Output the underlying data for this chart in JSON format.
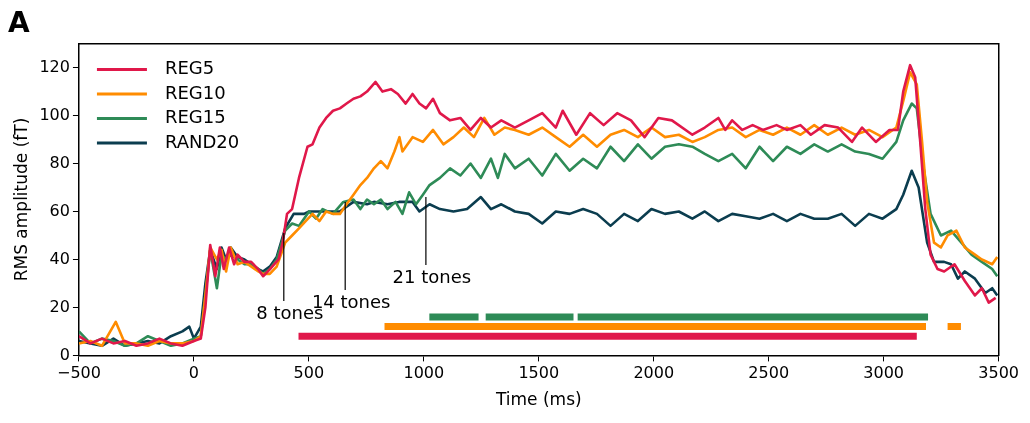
{
  "chart_data": {
    "type": "line",
    "title": "A",
    "xlabel": "Time (ms)",
    "ylabel": "RMS amplitude (fT)",
    "xlim": [
      -500,
      3500
    ],
    "xticks": [
      -500,
      0,
      500,
      1000,
      1500,
      2000,
      2500,
      3000,
      3500
    ],
    "ylim": [
      0,
      130
    ],
    "yticks": [
      0,
      20,
      40,
      60,
      80,
      100,
      120
    ],
    "grid": false,
    "legend": "top left",
    "marker": "none",
    "line_style": "solid",
    "annotations": [
      {
        "text": "8 tones",
        "x": 391,
        "y": 51
      },
      {
        "text": "14 tones",
        "x": 658,
        "y": 64
      },
      {
        "text": "21 tones",
        "x": 1009,
        "y": 66
      }
    ],
    "series": [
      {
        "name": "REG5",
        "color": "#e0184a",
        "x": [
          -500,
          -450,
          -400,
          -350,
          -300,
          -250,
          -200,
          -150,
          -100,
          -50,
          0,
          30,
          50,
          71,
          93,
          113,
          130,
          153,
          175,
          190,
          219,
          249,
          279,
          301,
          331,
          368,
          386,
          405,
          427,
          457,
          494,
          516,
          546,
          575,
          605,
          635,
          664,
          694,
          724,
          753,
          790,
          820,
          857,
          887,
          921,
          951,
          981,
          1010,
          1040,
          1070,
          1114,
          1159,
          1203,
          1248,
          1292,
          1337,
          1396,
          1456,
          1515,
          1574,
          1604,
          1663,
          1723,
          1782,
          1841,
          1901,
          1960,
          2020,
          2079,
          2168,
          2222,
          2281,
          2311,
          2341,
          2385,
          2430,
          2475,
          2534,
          2579,
          2638,
          2683,
          2743,
          2802,
          2862,
          2906,
          2966,
          3025,
          3062,
          3085,
          3115,
          3137,
          3159,
          3181,
          3204,
          3234,
          3263,
          3308,
          3353,
          3397,
          3427,
          3457,
          3487
        ],
        "values": [
          8,
          5,
          7,
          5,
          6,
          4,
          5,
          7,
          5,
          4,
          6,
          7,
          20,
          46,
          33,
          45,
          36,
          45,
          38,
          42,
          39,
          39,
          36,
          33,
          36,
          40,
          47,
          59,
          61,
          74,
          87,
          88,
          95,
          99,
          102,
          103,
          105,
          107,
          108,
          110,
          114,
          110,
          111,
          109,
          105,
          109,
          105,
          103,
          107,
          101,
          98,
          99,
          94,
          99,
          95,
          98,
          95,
          98,
          101,
          95,
          102,
          92,
          101,
          96,
          101,
          98,
          91,
          99,
          98,
          92,
          95,
          99,
          94,
          98,
          94,
          96,
          94,
          96,
          94,
          96,
          92,
          96,
          95,
          89,
          95,
          89,
          94,
          94,
          110,
          121,
          116,
          89,
          61,
          42,
          36,
          35,
          38,
          31,
          25,
          28,
          22,
          24
        ]
      },
      {
        "name": "REG10",
        "color": "#ff8c00",
        "x": [
          -500,
          -450,
          -400,
          -340,
          -300,
          -250,
          -200,
          -150,
          -100,
          -50,
          0,
          30,
          50,
          71,
          100,
          120,
          140,
          160,
          190,
          220,
          250,
          280,
          300,
          330,
          360,
          397,
          427,
          457,
          486,
          516,
          546,
          575,
          605,
          635,
          664,
          694,
          724,
          753,
          783,
          813,
          842,
          872,
          894,
          907,
          951,
          996,
          1040,
          1085,
          1129,
          1174,
          1218,
          1263,
          1307,
          1352,
          1396,
          1456,
          1515,
          1574,
          1634,
          1693,
          1753,
          1812,
          1871,
          1931,
          1990,
          2049,
          2109,
          2168,
          2222,
          2281,
          2341,
          2400,
          2460,
          2519,
          2579,
          2638,
          2698,
          2757,
          2817,
          2876,
          2936,
          2995,
          3055,
          3085,
          3115,
          3144,
          3167,
          3189,
          3219,
          3249,
          3278,
          3316,
          3353,
          3397,
          3427,
          3472,
          3494
        ],
        "values": [
          5,
          6,
          4,
          14,
          5,
          5,
          4,
          6,
          5,
          5,
          6,
          8,
          25,
          45,
          40,
          44,
          35,
          45,
          38,
          39,
          37,
          35,
          34,
          34,
          37,
          47,
          50,
          53,
          56,
          59,
          56,
          60,
          59,
          59,
          63,
          67,
          71,
          74,
          78,
          81,
          78,
          85,
          91,
          85,
          91,
          89,
          94,
          88,
          91,
          95,
          91,
          99,
          92,
          95,
          94,
          92,
          95,
          91,
          87,
          92,
          87,
          92,
          94,
          91,
          95,
          91,
          92,
          89,
          91,
          94,
          95,
          91,
          94,
          92,
          95,
          92,
          96,
          92,
          95,
          92,
          94,
          91,
          95,
          106,
          118,
          113,
          89,
          64,
          47,
          45,
          50,
          52,
          45,
          42,
          40,
          38,
          41
        ]
      },
      {
        "name": "REG15",
        "color": "#2e8b57",
        "x": [
          -500,
          -450,
          -400,
          -350,
          -300,
          -250,
          -200,
          -150,
          -100,
          -50,
          0,
          30,
          50,
          71,
          100,
          120,
          140,
          160,
          190,
          220,
          250,
          280,
          300,
          330,
          360,
          397,
          427,
          457,
          501,
          531,
          560,
          605,
          650,
          694,
          724,
          753,
          783,
          813,
          842,
          877,
          907,
          936,
          966,
          996,
          1025,
          1070,
          1114,
          1159,
          1203,
          1248,
          1292,
          1322,
          1352,
          1396,
          1456,
          1515,
          1574,
          1634,
          1693,
          1753,
          1812,
          1871,
          1931,
          1990,
          2049,
          2109,
          2168,
          2222,
          2281,
          2341,
          2400,
          2460,
          2519,
          2579,
          2638,
          2698,
          2757,
          2817,
          2876,
          2936,
          2995,
          3055,
          3085,
          3122,
          3144,
          3174,
          3204,
          3249,
          3293,
          3338,
          3382,
          3427,
          3472,
          3494
        ],
        "values": [
          10,
          5,
          7,
          6,
          4,
          5,
          8,
          6,
          4,
          5,
          7,
          8,
          25,
          44,
          28,
          42,
          40,
          42,
          40,
          38,
          38,
          36,
          34,
          36,
          40,
          52,
          55,
          54,
          60,
          57,
          61,
          59,
          64,
          65,
          61,
          65,
          63,
          65,
          61,
          64,
          59,
          68,
          63,
          67,
          71,
          74,
          78,
          75,
          80,
          74,
          82,
          74,
          84,
          78,
          82,
          75,
          84,
          77,
          82,
          78,
          87,
          81,
          88,
          82,
          87,
          88,
          87,
          84,
          81,
          84,
          78,
          87,
          81,
          87,
          84,
          88,
          85,
          88,
          85,
          84,
          82,
          89,
          98,
          105,
          103,
          78,
          59,
          50,
          52,
          47,
          42,
          39,
          36,
          33
        ]
      },
      {
        "name": "RAND20",
        "color": "#0b3d4f",
        "x": [
          -500,
          -450,
          -400,
          -350,
          -300,
          -250,
          -200,
          -150,
          -100,
          -50,
          -20,
          0,
          30,
          50,
          71,
          100,
          120,
          140,
          160,
          190,
          220,
          250,
          280,
          300,
          330,
          360,
          397,
          434,
          479,
          501,
          560,
          634,
          694,
          753,
          783,
          842,
          892,
          951,
          981,
          1025,
          1070,
          1129,
          1188,
          1248,
          1292,
          1337,
          1396,
          1456,
          1515,
          1574,
          1634,
          1693,
          1753,
          1812,
          1871,
          1931,
          1990,
          2049,
          2109,
          2168,
          2222,
          2281,
          2341,
          2400,
          2460,
          2519,
          2579,
          2638,
          2698,
          2757,
          2817,
          2876,
          2936,
          2995,
          3055,
          3085,
          3122,
          3152,
          3189,
          3219,
          3263,
          3293,
          3323,
          3353,
          3397,
          3442,
          3472,
          3494
        ],
        "values": [
          6,
          5,
          4,
          7,
          4,
          5,
          6,
          5,
          8,
          10,
          12,
          7,
          12,
          30,
          44,
          36,
          45,
          40,
          45,
          41,
          40,
          38,
          36,
          35,
          37,
          41,
          53,
          59,
          59,
          60,
          60,
          60,
          64,
          63,
          64,
          63,
          64,
          64,
          60,
          63,
          61,
          60,
          61,
          66,
          61,
          63,
          60,
          59,
          55,
          60,
          59,
          61,
          59,
          54,
          59,
          56,
          61,
          59,
          60,
          57,
          60,
          56,
          59,
          58,
          57,
          59,
          56,
          59,
          57,
          57,
          59,
          54,
          59,
          57,
          61,
          67,
          77,
          70,
          47,
          39,
          39,
          38,
          32,
          35,
          32,
          26,
          28,
          25
        ]
      },
      {
        "color": "#e0184a",
        "x": [
          455,
          3144
        ],
        "values": [
          8,
          8
        ]
      },
      {
        "color": "#ff8c00",
        "x": [
          829,
          3184,
          3230,
          3278,
          3336
        ],
        "values": [
          12,
          12,
          null,
          12,
          12
        ]
      },
      {
        "color": "#2e8b57",
        "x": [
          1024,
          1238,
          1250,
          1269,
          1651,
          1660,
          1669,
          3193
        ],
        "values": [
          16,
          16,
          null,
          16,
          16,
          null,
          16,
          16
        ]
      }
    ]
  }
}
